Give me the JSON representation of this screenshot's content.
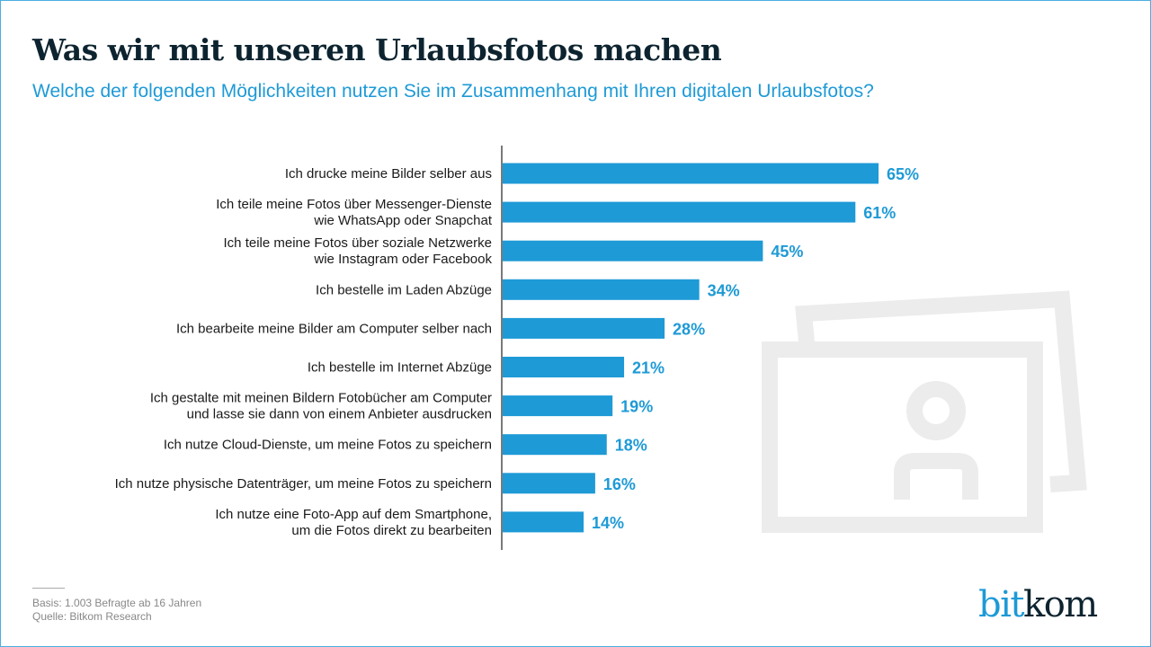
{
  "header": {
    "title": "Was wir mit unseren Urlaubsfotos machen",
    "subtitle": "Welche der folgenden Möglichkeiten nutzen Sie im Zusammenhang mit Ihren digitalen Urlaubsfotos?"
  },
  "footer": {
    "basis": "Basis: 1.003 Befragte ab 16 Jahren",
    "source": "Quelle: Bitkom Research"
  },
  "logo": {
    "part1": "bit",
    "part2": "kom"
  },
  "colors": {
    "bar": "#1e9ad6",
    "title": "#0d2430",
    "accent": "#1e9ad6",
    "icon": "#ececec"
  },
  "decoration": {
    "icon": "photos-icon"
  },
  "chart_data": {
    "type": "bar",
    "orientation": "horizontal",
    "title": "Was wir mit unseren Urlaubsfotos machen",
    "subtitle": "Welche der folgenden Möglichkeiten nutzen Sie im Zusammenhang mit Ihren digitalen Urlaubsfotos?",
    "xlabel": "",
    "ylabel": "",
    "unit": "%",
    "xlim": [
      0,
      65
    ],
    "grid": false,
    "legend": "none",
    "categories": [
      [
        "Ich drucke meine Bilder selber aus"
      ],
      [
        "Ich teile meine Fotos über Messenger-Dienste",
        "wie WhatsApp oder Snapchat"
      ],
      [
        "Ich teile meine Fotos über soziale Netzwerke",
        "wie Instagram oder Facebook"
      ],
      [
        "Ich bestelle im Laden Abzüge"
      ],
      [
        "Ich bearbeite meine Bilder am Computer selber nach"
      ],
      [
        "Ich bestelle im Internet Abzüge"
      ],
      [
        "Ich gestalte mit meinen Bildern Fotobücher am Computer",
        "und lasse sie dann von einem Anbieter ausdrucken"
      ],
      [
        "Ich nutze Cloud-Dienste, um meine Fotos zu speichern"
      ],
      [
        "Ich nutze physische Datenträger, um meine Fotos zu speichern"
      ],
      [
        "Ich nutze eine Foto-App auf dem Smartphone,",
        "um die Fotos direkt zu bearbeiten"
      ]
    ],
    "values": [
      65,
      61,
      45,
      34,
      28,
      21,
      19,
      18,
      16,
      14
    ],
    "data_labels": [
      "65%",
      "61%",
      "45%",
      "34%",
      "28%",
      "21%",
      "19%",
      "18%",
      "16%",
      "14%"
    ]
  }
}
